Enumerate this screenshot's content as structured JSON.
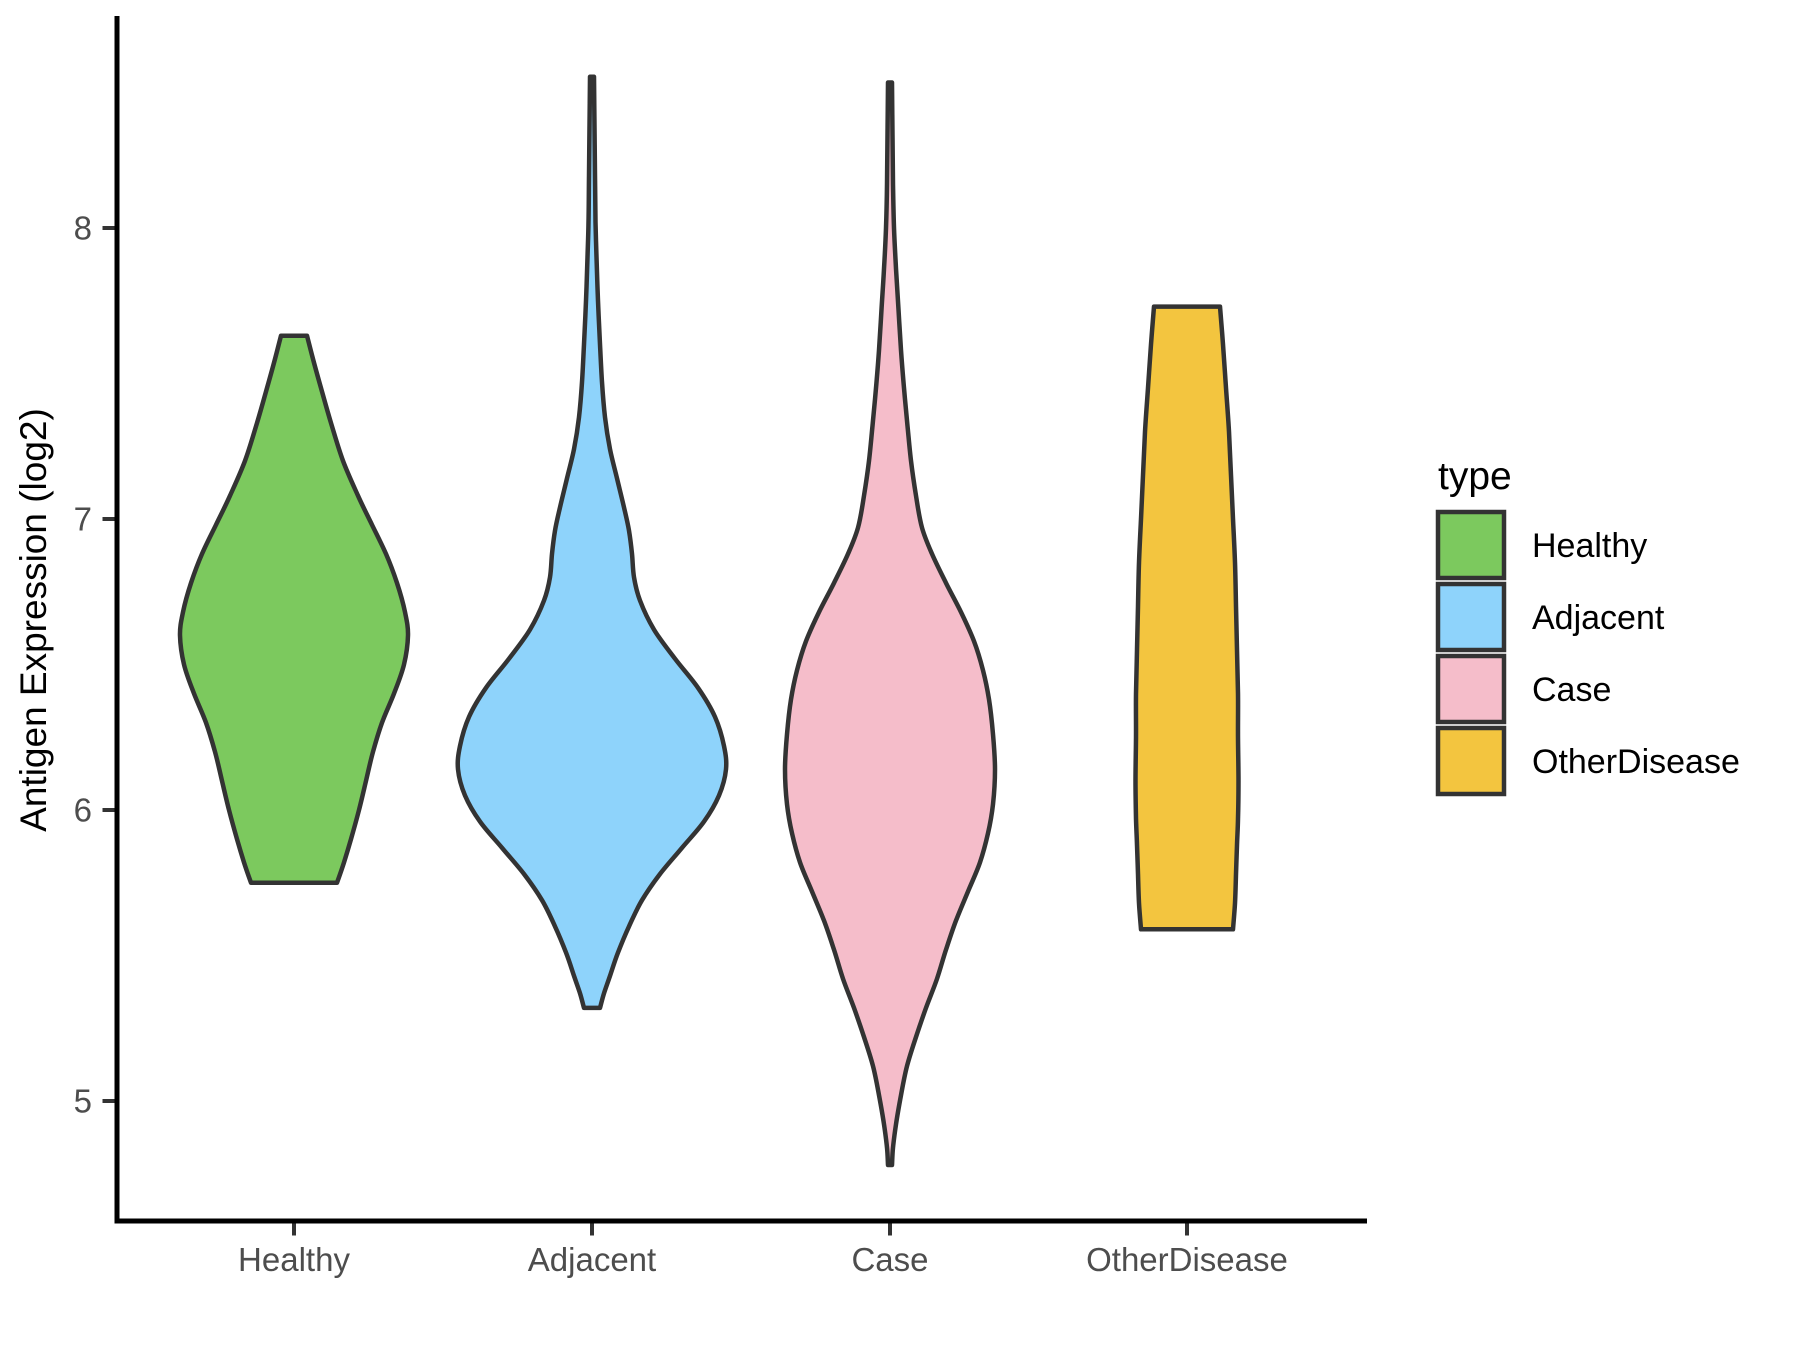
{
  "figure": {
    "background": "#ffffff",
    "violin_outline_color": "#333333",
    "axis_line_color": "#000000",
    "tick_mark_color": "#333333",
    "tick_label_color": "#4d4d4d",
    "title_text_color": "#000000"
  },
  "y_axis": {
    "title": "Antigen Expression (log2)",
    "tick_labels": [
      "5",
      "6",
      "7",
      "8"
    ],
    "tick_values": [
      5,
      6,
      7,
      8
    ]
  },
  "x_axis": {
    "tick_labels": [
      "Healthy",
      "Adjacent",
      "Case",
      "OtherDisease"
    ]
  },
  "legend": {
    "title": "type",
    "entries": [
      {
        "label": "Healthy",
        "color": "#7cc95e"
      },
      {
        "label": "Adjacent",
        "color": "#8ed3fb"
      },
      {
        "label": "Case",
        "color": "#f5bdca"
      },
      {
        "label": "OtherDisease",
        "color": "#f3c53f"
      }
    ]
  },
  "chart_data": {
    "type": "violin",
    "title": "",
    "xlabel": "",
    "ylabel": "Antigen Expression (log2)",
    "categories": [
      "Healthy",
      "Adjacent",
      "Case",
      "OtherDisease"
    ],
    "ylim": [
      4.59,
      8.72
    ],
    "y_ticks": [
      5,
      6,
      7,
      8
    ],
    "grid": false,
    "legend_position": "right",
    "profile_units": "expression value (log2) paired with half-width in canvas pixels, listed top to bottom",
    "series": [
      {
        "name": "Healthy",
        "color": "#7cc95e",
        "value_range": [
          5.75,
          7.63
        ],
        "widest_at": 6.6,
        "cap_top": "flat",
        "cap_bottom": "flat",
        "profile": [
          [
            7.63,
            13
          ],
          [
            7.55,
            19
          ],
          [
            7.45,
            27
          ],
          [
            7.33,
            37
          ],
          [
            7.2,
            49
          ],
          [
            7.08,
            64
          ],
          [
            6.98,
            78
          ],
          [
            6.88,
            92
          ],
          [
            6.78,
            103
          ],
          [
            6.68,
            111
          ],
          [
            6.6,
            114
          ],
          [
            6.5,
            110
          ],
          [
            6.4,
            100
          ],
          [
            6.3,
            88
          ],
          [
            6.2,
            79
          ],
          [
            6.1,
            72
          ],
          [
            6.0,
            65
          ],
          [
            5.9,
            57
          ],
          [
            5.82,
            50
          ],
          [
            5.75,
            43
          ]
        ]
      },
      {
        "name": "Adjacent",
        "color": "#8ed3fb",
        "value_range": [
          5.31,
          8.52
        ],
        "widest_at": 6.15,
        "cap_top": "point",
        "cap_bottom": "flat",
        "profile": [
          [
            8.52,
            2
          ],
          [
            8.35,
            2.5
          ],
          [
            8.18,
            3
          ],
          [
            8.02,
            3.5
          ],
          [
            7.9,
            4.5
          ],
          [
            7.75,
            6
          ],
          [
            7.6,
            8
          ],
          [
            7.47,
            10
          ],
          [
            7.35,
            13
          ],
          [
            7.24,
            18
          ],
          [
            7.14,
            25
          ],
          [
            7.04,
            32
          ],
          [
            6.96,
            37
          ],
          [
            6.88,
            40
          ],
          [
            6.8,
            42
          ],
          [
            6.72,
            48
          ],
          [
            6.62,
            62
          ],
          [
            6.52,
            83
          ],
          [
            6.42,
            106
          ],
          [
            6.32,
            123
          ],
          [
            6.22,
            132
          ],
          [
            6.14,
            134
          ],
          [
            6.05,
            127
          ],
          [
            5.96,
            112
          ],
          [
            5.87,
            90
          ],
          [
            5.78,
            68
          ],
          [
            5.69,
            50
          ],
          [
            5.6,
            37
          ],
          [
            5.51,
            26
          ],
          [
            5.43,
            18
          ],
          [
            5.37,
            12
          ],
          [
            5.32,
            8
          ]
        ]
      },
      {
        "name": "Case",
        "color": "#f5bdca",
        "value_range": [
          4.78,
          8.5
        ],
        "widest_at": 6.14,
        "cap_top": "point",
        "cap_bottom": "point",
        "profile": [
          [
            8.5,
            2
          ],
          [
            8.32,
            2.5
          ],
          [
            8.15,
            3
          ],
          [
            8.0,
            4
          ],
          [
            7.86,
            6
          ],
          [
            7.72,
            8.5
          ],
          [
            7.58,
            11
          ],
          [
            7.45,
            14
          ],
          [
            7.32,
            17.5
          ],
          [
            7.2,
            21
          ],
          [
            7.08,
            26
          ],
          [
            6.97,
            32
          ],
          [
            6.88,
            42
          ],
          [
            6.78,
            56
          ],
          [
            6.68,
            71
          ],
          [
            6.58,
            84
          ],
          [
            6.48,
            93
          ],
          [
            6.38,
            99
          ],
          [
            6.26,
            103
          ],
          [
            6.14,
            105
          ],
          [
            6.02,
            103
          ],
          [
            5.92,
            98
          ],
          [
            5.82,
            90
          ],
          [
            5.72,
            78
          ],
          [
            5.62,
            66
          ],
          [
            5.52,
            56
          ],
          [
            5.42,
            47
          ],
          [
            5.32,
            36
          ],
          [
            5.22,
            26
          ],
          [
            5.12,
            17
          ],
          [
            5.02,
            11
          ],
          [
            4.92,
            6
          ],
          [
            4.84,
            3
          ],
          [
            4.78,
            2
          ]
        ]
      },
      {
        "name": "OtherDisease",
        "color": "#f3c53f",
        "value_range": [
          5.59,
          7.73
        ],
        "widest_at": 6.1,
        "cap_top": "flat",
        "cap_bottom": "flat",
        "profile": [
          [
            7.73,
            33
          ],
          [
            7.6,
            36
          ],
          [
            7.45,
            39
          ],
          [
            7.3,
            42
          ],
          [
            7.15,
            44
          ],
          [
            7.0,
            46
          ],
          [
            6.85,
            48
          ],
          [
            6.7,
            49
          ],
          [
            6.55,
            50
          ],
          [
            6.4,
            51
          ],
          [
            6.25,
            51
          ],
          [
            6.1,
            51.5
          ],
          [
            5.97,
            51
          ],
          [
            5.88,
            50
          ],
          [
            5.78,
            49
          ],
          [
            5.68,
            48
          ],
          [
            5.59,
            46
          ]
        ]
      }
    ]
  }
}
